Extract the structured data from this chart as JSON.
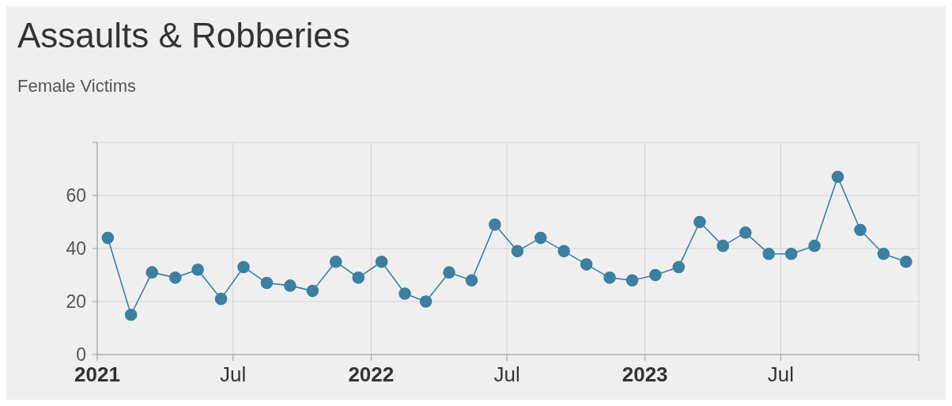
{
  "chart_data": {
    "type": "line",
    "title": "Assaults & Robberies",
    "subtitle": "Female Victims",
    "x": [
      "2021-01-15",
      "2021-02-15",
      "2021-03-15",
      "2021-04-15",
      "2021-05-15",
      "2021-06-15",
      "2021-07-15",
      "2021-08-15",
      "2021-09-15",
      "2021-10-15",
      "2021-11-15",
      "2021-12-15",
      "2022-01-15",
      "2022-02-15",
      "2022-03-15",
      "2022-04-15",
      "2022-05-15",
      "2022-06-15",
      "2022-07-15",
      "2022-08-15",
      "2022-09-15",
      "2022-10-15",
      "2022-11-15",
      "2022-12-15",
      "2023-01-15",
      "2023-02-15",
      "2023-03-15",
      "2023-04-15",
      "2023-05-15",
      "2023-06-15",
      "2023-07-15",
      "2023-08-15",
      "2023-09-15",
      "2023-10-15",
      "2023-11-15",
      "2023-12-15"
    ],
    "series": [
      {
        "color": "#3d7fa0",
        "values": [
          44,
          15,
          31,
          29,
          32,
          21,
          33,
          27,
          26,
          24,
          35,
          29,
          35,
          23,
          20,
          31,
          28,
          49,
          39,
          44,
          39,
          34,
          29,
          28,
          30,
          33,
          50,
          41,
          46,
          38,
          38,
          41,
          67,
          47,
          38,
          35
        ]
      }
    ],
    "xlim": [
      "2021-01-01",
      "2024-01-01"
    ],
    "xticks": [
      {
        "value": "2021-01-01",
        "label": "2021"
      },
      {
        "value": "2021-07-01",
        "label": "Jul"
      },
      {
        "value": "2022-01-01",
        "label": "2022"
      },
      {
        "value": "2022-07-01",
        "label": "Jul"
      },
      {
        "value": "2023-01-01",
        "label": "2023"
      },
      {
        "value": "2023-07-01",
        "label": "Jul"
      },
      {
        "value": "2024-01-01",
        "label": null
      }
    ],
    "ylim": [
      0,
      80
    ],
    "yticks": [
      0,
      20,
      40,
      60,
      {
        "value": 80,
        "label": null
      }
    ],
    "grid": true,
    "marker": "circle",
    "line_style": "solid",
    "legend": false
  }
}
